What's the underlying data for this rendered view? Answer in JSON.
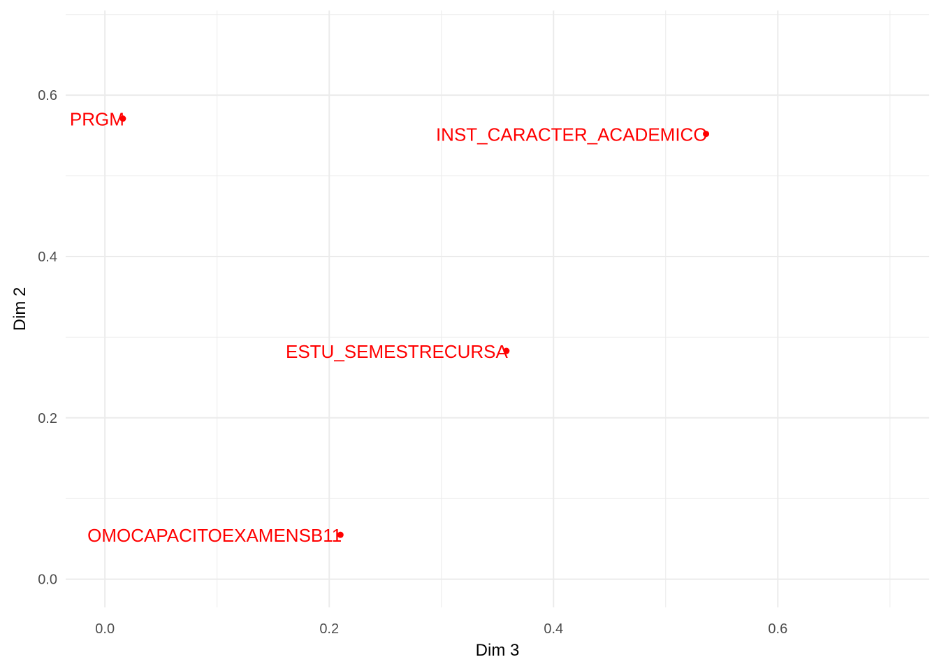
{
  "chart_data": {
    "type": "scatter",
    "xlabel": "Dim 3",
    "ylabel": "Dim 2",
    "xlim": [
      -0.035,
      0.735
    ],
    "ylim": [
      -0.035,
      0.705
    ],
    "x_ticks": [
      0.0,
      0.2,
      0.4,
      0.6
    ],
    "x_tick_labels": [
      "0.0",
      "0.2",
      "0.4",
      "0.6"
    ],
    "y_ticks": [
      0.0,
      0.2,
      0.4,
      0.6
    ],
    "y_tick_labels": [
      "0.0",
      "0.2",
      "0.4",
      "0.6"
    ],
    "grid": true,
    "legend": "none",
    "point_color": "#ff0000",
    "grid_color": "#ebebeb",
    "points": [
      {
        "label": "PRGM",
        "x": 0.016,
        "y": 0.571
      },
      {
        "label": "INST_CARACTER_ACADEMICO",
        "x": 0.536,
        "y": 0.552
      },
      {
        "label": "ESTU_SEMESTRECURSA",
        "x": 0.358,
        "y": 0.283
      },
      {
        "label": "OMOCAPACITOEXAMENSB11",
        "x": 0.21,
        "y": 0.055
      }
    ]
  }
}
